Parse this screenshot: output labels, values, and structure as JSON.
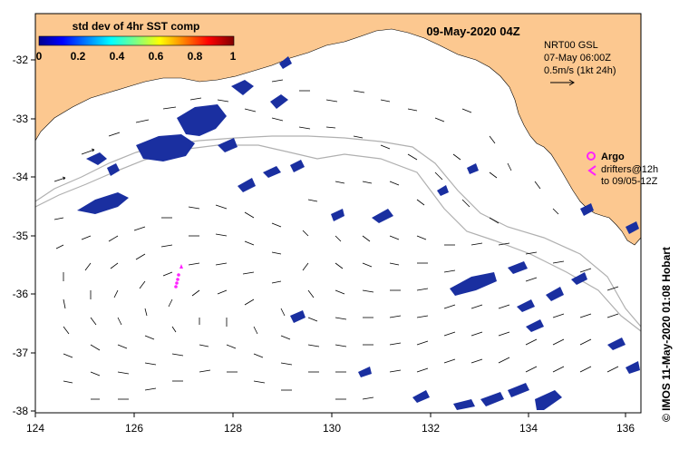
{
  "title": "09-May-2020 04Z",
  "colorbar": {
    "label": "std dev of 4hr SST comp",
    "ticks": [
      "0",
      "0.2",
      "0.4",
      "0.6",
      "0.8",
      "1"
    ]
  },
  "current_key": {
    "line1": "NRT00 GSL",
    "line2": "07-May 06:00Z",
    "line3": "0.5m/s (1kt 24h)"
  },
  "legend": {
    "argo": "Argo",
    "drifters1": "drifters@12h",
    "drifters2": "to 09/05-12Z"
  },
  "credit": "© IMOS 11-May-2020 01:08 Hobart",
  "axes": {
    "x_ticks": [
      "124",
      "126",
      "128",
      "130",
      "132",
      "134",
      "136"
    ],
    "y_ticks": [
      "-32",
      "-33",
      "-34",
      "-35",
      "-36",
      "-37",
      "-38"
    ]
  },
  "colors": {
    "land": "#fcc890",
    "sst_patch": "#1a2fa0",
    "drifter": "#ff22ff",
    "contour": "#b0b0b0"
  }
}
